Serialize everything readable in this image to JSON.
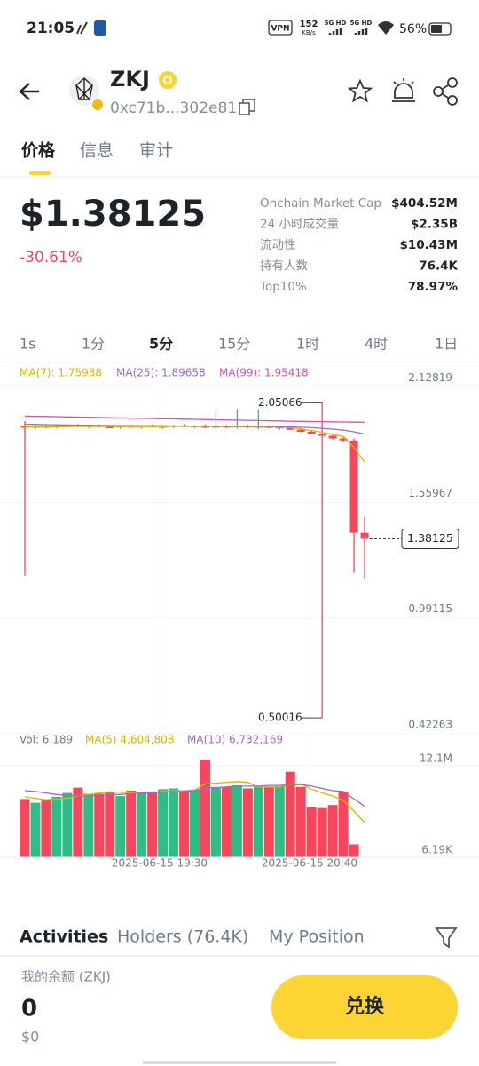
{
  "status_bar": {
    "time": "21:05",
    "vpn": "VPN",
    "speed": "152",
    "speed_unit": "KB/s",
    "net1": "5G HD",
    "net2": "5G HD",
    "battery": "56%"
  },
  "header": {
    "title": "ZKJ",
    "address": "0xc71b...302e81"
  },
  "tabs": {
    "items": [
      "价格",
      "信息",
      "审计"
    ],
    "active": 0
  },
  "price": {
    "value": "$1.38125",
    "change": "-30.61%"
  },
  "stats": [
    {
      "label": "Onchain Market Cap",
      "value": "$404.52M"
    },
    {
      "label": "24 小时成交量",
      "value": "$2.35B"
    },
    {
      "label": "流动性",
      "value": "$10.43M"
    },
    {
      "label": "持有人数",
      "value": "76.4K"
    },
    {
      "label": "Top10%",
      "value": "78.97%"
    }
  ],
  "intervals": {
    "items": [
      "1s",
      "1分",
      "5分",
      "15分",
      "1时",
      "4时",
      "1日"
    ],
    "active": 2
  },
  "chart_data": {
    "type": "candlestick",
    "up_color": "#2ebd85",
    "down_color": "#f6465d",
    "ylim": [
      0.4,
      2.24
    ],
    "yticks": [
      2.12819,
      1.55967,
      0.99115,
      0.42263
    ],
    "candles": {
      "open": [
        1.935,
        1.928,
        1.934,
        1.93,
        1.936,
        1.94,
        1.933,
        1.938,
        1.932,
        1.929,
        1.935,
        1.931,
        1.936,
        1.93,
        1.934,
        1.939,
        1.933,
        1.937,
        1.928,
        1.935,
        1.93,
        1.936,
        1.929,
        1.934,
        1.927,
        1.931,
        1.918,
        1.908,
        1.898,
        1.888,
        1.875,
        1.865,
        1.411
      ],
      "high": [
        1.96,
        1.94,
        1.945,
        1.942,
        1.944,
        1.946,
        1.94,
        1.944,
        1.94,
        1.938,
        1.942,
        1.939,
        1.943,
        1.938,
        1.941,
        1.945,
        1.94,
        1.944,
        2.02,
        1.941,
        2.02,
        1.942,
        2.018,
        1.94,
        1.935,
        1.936,
        1.925,
        1.915,
        2.05066,
        1.895,
        1.88,
        1.875,
        1.49
      ],
      "low": [
        1.201,
        1.92,
        1.925,
        1.924,
        1.928,
        1.93,
        1.926,
        1.93,
        1.925,
        1.922,
        1.928,
        1.924,
        1.929,
        1.923,
        1.927,
        1.931,
        1.926,
        1.925,
        1.922,
        1.926,
        1.924,
        1.925,
        1.921,
        1.924,
        1.918,
        1.915,
        1.905,
        1.895,
        0.50016,
        1.87,
        1.86,
        1.214,
        1.183
      ],
      "close": [
        1.928,
        1.934,
        1.93,
        1.936,
        1.94,
        1.933,
        1.938,
        1.932,
        1.929,
        1.935,
        1.931,
        1.936,
        1.93,
        1.934,
        1.939,
        1.933,
        1.937,
        1.928,
        1.935,
        1.93,
        1.936,
        1.929,
        1.934,
        1.927,
        1.931,
        1.918,
        1.908,
        1.898,
        1.888,
        1.875,
        1.865,
        1.411,
        1.38125
      ]
    },
    "series": [
      {
        "name": "MA(7): 1.75938",
        "color": "#e0b400",
        "values": [
          1.932,
          1.931,
          1.931,
          1.932,
          1.933,
          1.934,
          1.934,
          1.935,
          1.934,
          1.933,
          1.933,
          1.933,
          1.933,
          1.933,
          1.934,
          1.934,
          1.935,
          1.934,
          1.934,
          1.933,
          1.933,
          1.932,
          1.932,
          1.932,
          1.931,
          1.928,
          1.922,
          1.915,
          1.905,
          1.895,
          1.885,
          1.83,
          1.75938
        ]
      },
      {
        "name": "MA(25): 1.89658",
        "color": "#9b6bc7",
        "values": [
          1.945,
          1.944,
          1.943,
          1.942,
          1.941,
          1.94,
          1.94,
          1.939,
          1.939,
          1.938,
          1.938,
          1.937,
          1.937,
          1.937,
          1.936,
          1.936,
          1.936,
          1.936,
          1.936,
          1.935,
          1.935,
          1.935,
          1.935,
          1.934,
          1.933,
          1.932,
          1.93,
          1.928,
          1.925,
          1.921,
          1.916,
          1.908,
          1.89658
        ]
      },
      {
        "name": "MA(99): 1.95418",
        "color": "#d84fb4",
        "values": [
          1.985,
          1.984,
          1.983,
          1.982,
          1.981,
          1.98,
          1.979,
          1.978,
          1.977,
          1.976,
          1.975,
          1.974,
          1.973,
          1.972,
          1.971,
          1.97,
          1.969,
          1.968,
          1.967,
          1.966,
          1.965,
          1.964,
          1.963,
          1.962,
          1.961,
          1.96,
          1.959,
          1.958,
          1.958,
          1.957,
          1.956,
          1.955,
          1.95418
        ]
      }
    ],
    "volume": {
      "label": "Vol: 6,189",
      "ylim": [
        0,
        13500000
      ],
      "yticks": [
        {
          "value": 12100000,
          "label": "12.1M"
        },
        {
          "value": 6190,
          "label": "6.19K"
        }
      ],
      "values": [
        7700000,
        7200000,
        7500000,
        8000000,
        8500000,
        9200000,
        8400000,
        8400000,
        8700000,
        8100000,
        8800000,
        8500000,
        8700000,
        9000000,
        9100000,
        8800000,
        8900000,
        12900000,
        9200000,
        9300000,
        9500000,
        9100000,
        9300000,
        9300000,
        9400000,
        11300000,
        9300000,
        6600000,
        6500000,
        6900000,
        8600000,
        1700000,
        6189
      ],
      "series": [
        {
          "name": "MA(5) 4,604,808",
          "color": "#e0b400",
          "values": [
            8000000,
            7800000,
            7600000,
            7700000,
            7800000,
            8100000,
            8300000,
            8500000,
            8600000,
            8600000,
            8500000,
            8600000,
            8600000,
            8700000,
            8800000,
            8800000,
            8900000,
            9700000,
            9800000,
            9900000,
            10000000,
            9900000,
            9300000,
            9300000,
            9300000,
            9700000,
            9700000,
            9000000,
            8500000,
            8100000,
            7500000,
            6100000,
            4604808
          ]
        },
        {
          "name": "MA(10) 6,732,169",
          "color": "#9b6bc7",
          "values": [
            8800000,
            8700000,
            8500000,
            8300000,
            8200000,
            8100000,
            8100000,
            8200000,
            8300000,
            8300000,
            8400000,
            8500000,
            8500000,
            8600000,
            8700000,
            8700000,
            8800000,
            9200000,
            9200000,
            9300000,
            9400000,
            9400000,
            9400000,
            9500000,
            9500000,
            9600000,
            9600000,
            9400000,
            9100000,
            8800000,
            8700000,
            7700000,
            6732169
          ]
        }
      ]
    },
    "x_labels": [
      "2025-06-15 19:30",
      "2025-06-15 20:40"
    ]
  },
  "activity_tabs": [
    "Activities",
    "Holders (76.4K)",
    "My Position"
  ],
  "balance": {
    "label": "我的余额 (ZKJ)",
    "amount": "0",
    "usd": "$0",
    "button": "兑换"
  }
}
